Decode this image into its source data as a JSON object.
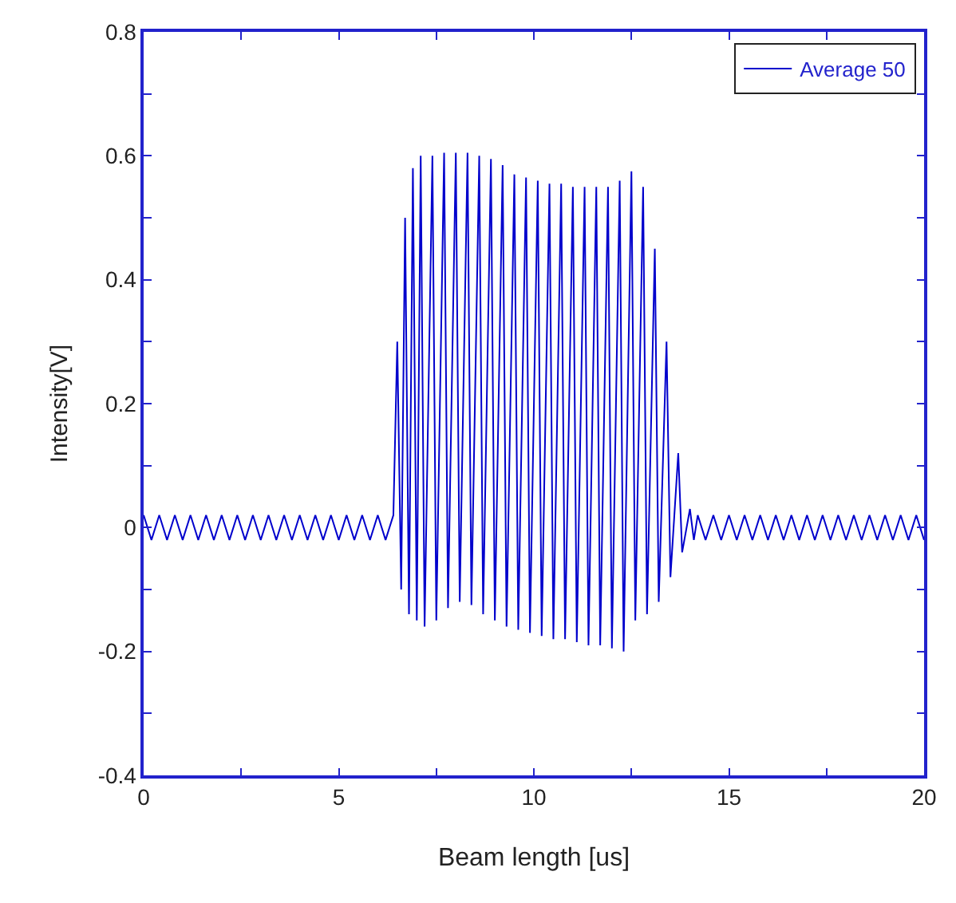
{
  "chart_data": {
    "type": "line",
    "xlabel": "Beam length [us]",
    "ylabel": "Intensity[V]",
    "xlim": [
      0,
      20
    ],
    "ylim": [
      -0.4,
      0.8
    ],
    "xticks": [
      0,
      {
        "value": 2.5,
        "label": null
      },
      5,
      {
        "value": 7.5,
        "label": null
      },
      10,
      {
        "value": 12.5,
        "label": null
      },
      15,
      {
        "value": 17.5,
        "label": null
      },
      20
    ],
    "yticks": [
      -0.4,
      {
        "value": -0.3,
        "label": null
      },
      -0.2,
      {
        "value": -0.1,
        "label": null
      },
      0,
      {
        "value": 0.1,
        "label": null
      },
      0.2,
      {
        "value": 0.3,
        "label": null
      },
      0.4,
      {
        "value": 0.5,
        "label": null
      },
      0.6,
      {
        "value": 0.7,
        "label": null
      },
      0.8
    ],
    "legend": "top right",
    "marker": "none",
    "line_style": "solid",
    "series": [
      {
        "name": "Average 50",
        "color": "#0000cc",
        "x": [
          0,
          0.2,
          0.4,
          0.6,
          0.8,
          1.0,
          1.2,
          1.4,
          1.6,
          1.8,
          2.0,
          2.2,
          2.4,
          2.6,
          2.8,
          3.0,
          3.2,
          3.4,
          3.6,
          3.8,
          4.0,
          4.2,
          4.4,
          4.6,
          4.8,
          5.0,
          5.2,
          5.4,
          5.6,
          5.8,
          6.0,
          6.2,
          6.4,
          6.5,
          6.6,
          6.7,
          6.8,
          6.9,
          7.0,
          7.1,
          7.2,
          7.4,
          7.5,
          7.7,
          7.8,
          8.0,
          8.1,
          8.3,
          8.4,
          8.6,
          8.7,
          8.9,
          9.0,
          9.2,
          9.3,
          9.5,
          9.6,
          9.8,
          9.9,
          10.1,
          10.2,
          10.4,
          10.5,
          10.7,
          10.8,
          11.0,
          11.1,
          11.3,
          11.4,
          11.6,
          11.7,
          11.9,
          12.0,
          12.2,
          12.3,
          12.5,
          12.6,
          12.8,
          12.9,
          13.1,
          13.2,
          13.4,
          13.5,
          13.7,
          13.8,
          14.0,
          14.1,
          14.2,
          14.4,
          14.6,
          14.8,
          15.0,
          15.2,
          15.4,
          15.6,
          15.8,
          16.0,
          16.2,
          16.4,
          16.6,
          16.8,
          17.0,
          17.2,
          17.4,
          17.6,
          17.8,
          18.0,
          18.2,
          18.4,
          18.6,
          18.8,
          19.0,
          19.2,
          19.4,
          19.6,
          19.8,
          20.0
        ],
        "values": [
          0.02,
          -0.02,
          0.02,
          -0.02,
          0.02,
          -0.02,
          0.02,
          -0.02,
          0.02,
          -0.02,
          0.02,
          -0.02,
          0.02,
          -0.02,
          0.02,
          -0.02,
          0.02,
          -0.02,
          0.02,
          -0.02,
          0.02,
          -0.02,
          0.02,
          -0.02,
          0.02,
          -0.02,
          0.02,
          -0.02,
          0.02,
          -0.02,
          0.02,
          -0.02,
          0.02,
          0.3,
          -0.1,
          0.5,
          -0.14,
          0.58,
          -0.15,
          0.6,
          -0.16,
          0.6,
          -0.15,
          0.605,
          -0.13,
          0.605,
          -0.12,
          0.605,
          -0.125,
          0.6,
          -0.14,
          0.595,
          -0.15,
          0.585,
          -0.16,
          0.57,
          -0.165,
          0.565,
          -0.17,
          0.56,
          -0.175,
          0.555,
          -0.18,
          0.555,
          -0.18,
          0.55,
          -0.185,
          0.55,
          -0.19,
          0.55,
          -0.19,
          0.55,
          -0.195,
          0.56,
          -0.2,
          0.575,
          -0.15,
          0.55,
          -0.14,
          0.45,
          -0.12,
          0.3,
          -0.08,
          0.12,
          -0.04,
          0.03,
          -0.02,
          0.02,
          -0.02,
          0.02,
          -0.02,
          0.02,
          -0.02,
          0.02,
          -0.02,
          0.02,
          -0.02,
          0.02,
          -0.02,
          0.02,
          -0.02,
          0.02,
          -0.02,
          0.02,
          -0.02,
          0.02,
          -0.02,
          0.02,
          -0.02,
          0.02,
          -0.02,
          0.02,
          -0.02,
          0.02,
          -0.02,
          0.02,
          -0.02
        ]
      }
    ]
  }
}
